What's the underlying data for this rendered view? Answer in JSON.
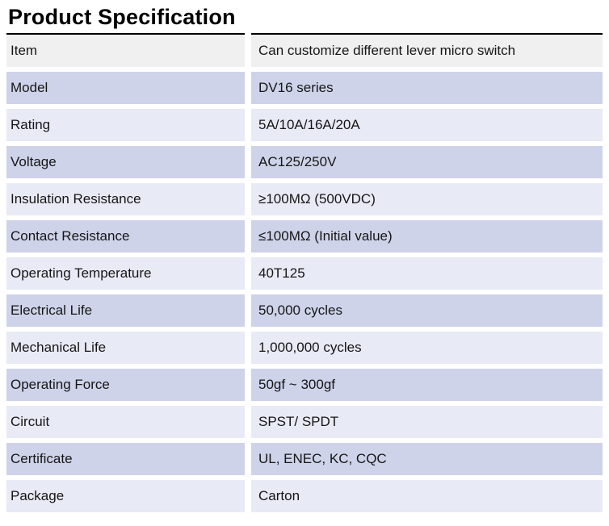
{
  "page": {
    "title": "Product Specification"
  },
  "table": {
    "rows": [
      {
        "label": "Item",
        "value": "Can customize different lever micro switch"
      },
      {
        "label": "Model",
        "value": "DV16 series"
      },
      {
        "label": "Rating",
        "value": "5A/10A/16A/20A"
      },
      {
        "label": "Voltage",
        "value": "AC125/250V"
      },
      {
        "label": "Insulation Resistance",
        "value": "≥100MΩ (500VDC)"
      },
      {
        "label": "Contact Resistance",
        "value": "≤100MΩ (Initial value)"
      },
      {
        "label": "Operating Temperature",
        "value": "40T125"
      },
      {
        "label": "Electrical Life",
        "value": "50,000 cycles"
      },
      {
        "label": "Mechanical Life",
        "value": "1,000,000 cycles"
      },
      {
        "label": "Operating Force",
        "value": "50gf ~ 300gf"
      },
      {
        "label": "Circuit",
        "value": "SPST/ SPDT"
      },
      {
        "label": "Certificate",
        "value": "UL, ENEC, KC, CQC"
      },
      {
        "label": "Package",
        "value": "Carton"
      }
    ],
    "colors": {
      "header_row_bg": "#f0f0f1",
      "row_dark_bg": "#ced3e9",
      "row_light_bg": "#e8eaf5",
      "top_border": "#000000",
      "text": "#161616"
    }
  }
}
